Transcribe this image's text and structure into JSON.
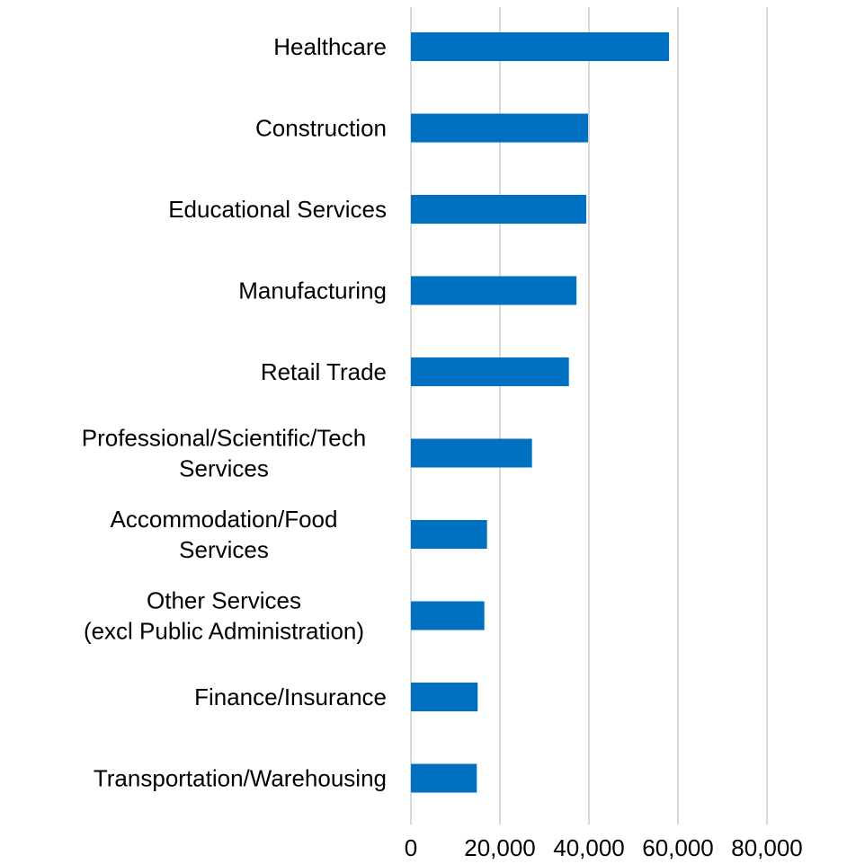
{
  "chart_data": {
    "type": "bar",
    "orientation": "horizontal",
    "categories": [
      [
        "Healthcare"
      ],
      [
        "Construction"
      ],
      [
        "Educational Services"
      ],
      [
        "Manufacturing"
      ],
      [
        "Retail Trade"
      ],
      [
        "Professional/Scientific/Tech",
        "Services"
      ],
      [
        "Accommodation/Food",
        "Services"
      ],
      [
        "Other Services",
        "(excl Public Administration)"
      ],
      [
        "Finance/Insurance"
      ],
      [
        "Transportation/Warehousing"
      ]
    ],
    "values": [
      58000,
      39800,
      39400,
      37200,
      35500,
      27200,
      17100,
      16500,
      15000,
      14800
    ],
    "x_ticks": [
      0,
      20000,
      40000,
      60000,
      80000
    ],
    "x_tick_labels": [
      "0",
      "20,000",
      "40,000",
      "60,000",
      "80,000"
    ],
    "xlim": [
      0,
      80000
    ],
    "grid": true,
    "legend": "none",
    "bar_color": "#0070C0",
    "grid_color": "#D9D9D9",
    "title": "",
    "xlabel": "",
    "ylabel": ""
  }
}
